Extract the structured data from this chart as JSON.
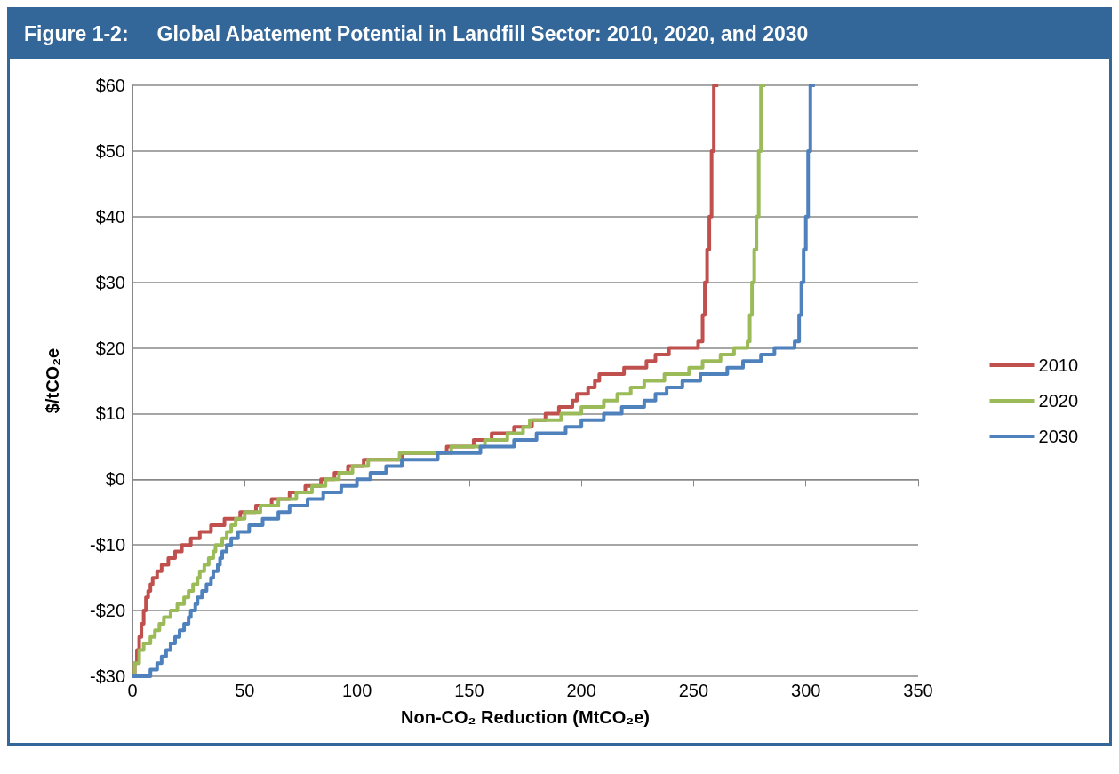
{
  "chart_data": {
    "type": "step",
    "title": "Figure 1-2:     Global Abatement Potential in Landfill Sector: 2010, 2020, and 2030",
    "xlabel": "Non-CO₂ Reduction (MtCO₂e)",
    "ylabel": "$/tCO₂e",
    "xlim": [
      0,
      350
    ],
    "xticks": [
      0,
      50,
      100,
      150,
      200,
      250,
      300,
      350
    ],
    "ylim": [
      -30,
      60
    ],
    "yticks": [
      {
        "value": -30,
        "label": "-$30"
      },
      {
        "value": -20,
        "label": "-$20"
      },
      {
        "value": -10,
        "label": "-$10"
      },
      {
        "value": 0,
        "label": "$0"
      },
      {
        "value": 10,
        "label": "$10"
      },
      {
        "value": 20,
        "label": "$20"
      },
      {
        "value": 30,
        "label": "$30"
      },
      {
        "value": 40,
        "label": "$40"
      },
      {
        "value": 50,
        "label": "$50"
      },
      {
        "value": 60,
        "label": "$60"
      }
    ],
    "grid": "y",
    "legend": "right",
    "marker": "none",
    "line_style": "solid",
    "series": [
      {
        "name": "2010",
        "color": "#c0504d",
        "x": [
          0,
          1,
          2,
          3,
          4,
          5,
          6,
          7,
          8,
          9,
          11,
          13,
          16,
          19,
          22,
          26,
          30,
          35,
          41,
          48,
          55,
          62,
          70,
          77,
          84,
          90,
          96,
          103,
          120,
          140,
          152,
          160,
          170,
          178,
          184,
          190,
          196,
          198,
          203,
          206,
          208,
          219,
          229,
          233,
          239,
          252,
          254,
          255,
          256,
          257,
          258,
          259,
          261
        ],
        "values": [
          -30,
          -28,
          -26,
          -24,
          -22,
          -20,
          -18,
          -17,
          -16,
          -15,
          -14,
          -13,
          -12,
          -11,
          -10,
          -9,
          -8,
          -7,
          -6,
          -5,
          -4,
          -3,
          -2,
          -1,
          0,
          1,
          2,
          3,
          4,
          5,
          6,
          7,
          8,
          9,
          10,
          11,
          12,
          13,
          14,
          15,
          16,
          17,
          18,
          19,
          20,
          21,
          25,
          30,
          35,
          40,
          50,
          60,
          60
        ]
      },
      {
        "name": "2020",
        "color": "#9bbb59",
        "x": [
          0,
          1,
          3,
          5,
          8,
          10,
          12,
          14,
          17,
          20,
          23,
          25,
          27,
          29,
          30,
          32,
          34,
          36,
          37,
          40,
          42,
          44,
          46,
          50,
          57,
          65,
          73,
          80,
          86,
          92,
          98,
          105,
          119,
          142,
          157,
          167,
          174,
          177,
          191,
          200,
          210,
          216,
          222,
          228,
          237,
          248,
          254,
          262,
          268,
          274,
          275,
          276,
          277,
          278,
          279,
          280,
          282
        ],
        "values": [
          -30,
          -28,
          -26,
          -25,
          -24,
          -23,
          -22,
          -21,
          -20,
          -19,
          -18,
          -17,
          -16,
          -15,
          -14,
          -13,
          -12,
          -11,
          -10,
          -9,
          -8,
          -7,
          -6,
          -5,
          -4,
          -3,
          -2,
          -1,
          0,
          1,
          2,
          3,
          4,
          5,
          6,
          7,
          8,
          9,
          10,
          11,
          12,
          13,
          14,
          15,
          16,
          17,
          18,
          19,
          20,
          21,
          25,
          30,
          35,
          40,
          50,
          60,
          60
        ]
      },
      {
        "name": "2030",
        "color": "#4f81bd",
        "x": [
          0,
          8,
          11,
          13,
          15,
          17,
          19,
          21,
          23,
          25,
          26,
          28,
          29,
          31,
          33,
          35,
          36,
          38,
          39,
          40,
          42,
          44,
          47,
          52,
          58,
          65,
          70,
          78,
          85,
          93,
          100,
          106,
          113,
          120,
          136,
          155,
          170,
          180,
          193,
          200,
          210,
          218,
          228,
          233,
          238,
          245,
          253,
          265,
          272,
          280,
          286,
          295,
          297,
          298,
          299,
          300,
          301,
          302,
          304
        ],
        "values": [
          -30,
          -29,
          -28,
          -27,
          -26,
          -25,
          -24,
          -23,
          -22,
          -21,
          -20,
          -19,
          -18,
          -17,
          -16,
          -15,
          -14,
          -13,
          -12,
          -11,
          -10,
          -9,
          -8,
          -7,
          -6,
          -5,
          -4,
          -3,
          -2,
          -1,
          0,
          1,
          2,
          3,
          4,
          5,
          6,
          7,
          8,
          9,
          10,
          11,
          12,
          13,
          14,
          15,
          16,
          17,
          18,
          19,
          20,
          21,
          25,
          30,
          35,
          40,
          50,
          60,
          60
        ]
      }
    ]
  }
}
